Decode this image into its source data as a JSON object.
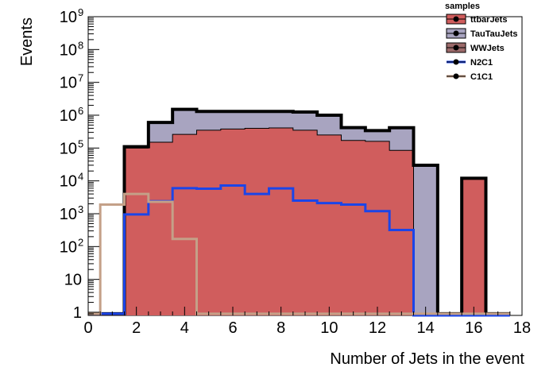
{
  "chart_data": {
    "type": "step-histogram",
    "xlabel": "Number of Jets in the event",
    "ylabel": "Events",
    "x_range": [
      0,
      18
    ],
    "y_range": [
      0.8,
      1000000000
    ],
    "y_scale": "log",
    "x_ticks": [
      0,
      2,
      4,
      6,
      8,
      10,
      12,
      14,
      16,
      18
    ],
    "y_ticks": [
      {
        "value": 1,
        "base": "1",
        "exp": ""
      },
      {
        "value": 10,
        "base": "10",
        "exp": ""
      },
      {
        "value": 100,
        "base": "10",
        "exp": "2"
      },
      {
        "value": 1000,
        "base": "10",
        "exp": "3"
      },
      {
        "value": 10000,
        "base": "10",
        "exp": "4"
      },
      {
        "value": 100000,
        "base": "10",
        "exp": "5"
      },
      {
        "value": 1000000,
        "base": "10",
        "exp": "6"
      },
      {
        "value": 10000000,
        "base": "10",
        "exp": "7"
      },
      {
        "value": 100000000,
        "base": "10",
        "exp": "8"
      },
      {
        "value": 1000000000,
        "base": "10",
        "exp": "9"
      }
    ],
    "bin_edges": [
      -0.5,
      0.5,
      1.5,
      2.5,
      3.5,
      4.5,
      5.5,
      6.5,
      7.5,
      8.5,
      9.5,
      10.5,
      11.5,
      12.5,
      13.5,
      14.5,
      15.5,
      16.5,
      17.5
    ],
    "legend": {
      "header": "samples",
      "entries": [
        {
          "label": "ttbarJets",
          "style": "fill"
        },
        {
          "label": "TauTauJets",
          "style": "fill"
        },
        {
          "label": "WWJets",
          "style": "fill"
        },
        {
          "label": "N2C1",
          "style": "line"
        },
        {
          "label": "C1C1",
          "style": "line"
        }
      ]
    },
    "stack": [
      {
        "name": "ttbarJets",
        "color": "#d05d5d",
        "values": [
          0.9,
          0.9,
          100000,
          150000,
          260000,
          350000,
          380000,
          400000,
          410000,
          350000,
          250000,
          170000,
          160000,
          85000,
          0.9,
          0.9,
          12000,
          0.9
        ]
      },
      {
        "name": "TauTauJets",
        "color": "#a8a4c0",
        "values": [
          0,
          0,
          10000,
          450000,
          1250000,
          950000,
          920000,
          900000,
          890000,
          900000,
          750000,
          250000,
          180000,
          330000,
          30000,
          0,
          0,
          0
        ]
      },
      {
        "name": "WWJets",
        "color": "#9c6a6a",
        "values": [
          0,
          0,
          0,
          0,
          0,
          0,
          0,
          0,
          0,
          0,
          0,
          0,
          0,
          0,
          0,
          0,
          0,
          0
        ]
      }
    ],
    "lines": [
      {
        "name": "N2C1",
        "color": "#1b45e8",
        "values": [
          0.9,
          0.9,
          950,
          2400,
          6000,
          5800,
          7200,
          4000,
          5900,
          2500,
          2100,
          1900,
          1200,
          320,
          0,
          0,
          0,
          0
        ]
      },
      {
        "name": "C1C1",
        "color": "#c4a088",
        "values": [
          0.9,
          1900,
          4000,
          2300,
          170,
          0.9,
          0.9,
          0.9,
          0.9,
          0.9,
          0.9,
          0.9,
          0.9,
          0.9,
          0.9,
          0.9,
          0.9,
          0.9
        ]
      }
    ]
  }
}
